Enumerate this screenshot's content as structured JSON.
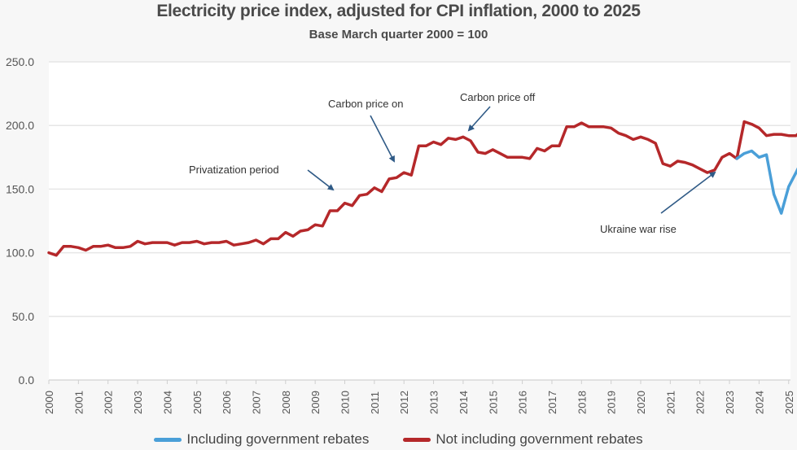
{
  "chart_data": {
    "type": "line",
    "title": "Electricity price index, adjusted for CPI inflation, 2000 to 2025",
    "subtitle": "Base March quarter 2000 = 100",
    "xlabel": "",
    "ylabel": "",
    "ylim": [
      0,
      250
    ],
    "yticks": [
      "0.0",
      "50.0",
      "100.0",
      "150.0",
      "200.0",
      "250.0"
    ],
    "ytick_values": [
      0,
      50,
      100,
      150,
      200,
      250
    ],
    "xticks": [
      "2000",
      "2001",
      "2002",
      "2003",
      "2004",
      "2005",
      "2006",
      "2007",
      "2008",
      "2009",
      "2010",
      "2011",
      "2012",
      "2013",
      "2014",
      "2015",
      "2016",
      "2017",
      "2018",
      "2019",
      "2020",
      "2021",
      "2022",
      "2023",
      "2024",
      "2025"
    ],
    "x_start": 2000.0,
    "x_step": 0.25,
    "grid": true,
    "legend_position": "bottom",
    "series": [
      {
        "name": "Including government rebates",
        "color": "#4a9fd8",
        "start_index": 93,
        "values": [
          174,
          178,
          180,
          175,
          177,
          146,
          131,
          152,
          163,
          175
        ]
      },
      {
        "name": "Not including government rebates",
        "color": "#b5282a",
        "start_index": 0,
        "values": [
          100,
          98,
          105,
          105,
          104,
          102,
          105,
          105,
          106,
          104,
          104,
          105,
          109,
          107,
          108,
          108,
          108,
          106,
          108,
          108,
          109,
          107,
          108,
          108,
          109,
          106,
          107,
          108,
          110,
          107,
          111,
          111,
          116,
          113,
          117,
          118,
          122,
          121,
          133,
          133,
          139,
          137,
          145,
          146,
          151,
          148,
          158,
          159,
          163,
          161,
          184,
          184,
          187,
          185,
          190,
          189,
          191,
          188,
          179,
          178,
          181,
          178,
          175,
          175,
          175,
          174,
          182,
          180,
          184,
          184,
          199,
          199,
          202,
          199,
          199,
          199,
          198,
          194,
          192,
          189,
          191,
          189,
          186,
          170,
          168,
          172,
          171,
          169,
          166,
          163,
          165,
          175,
          178,
          174,
          203,
          201,
          198,
          192,
          193,
          193,
          192,
          192,
          197
        ]
      }
    ],
    "annotations": [
      {
        "text": "Privatization period",
        "points_to_year": 2010.0
      },
      {
        "text": "Carbon price on",
        "points_to_year": 2012.25
      },
      {
        "text": "Carbon price off",
        "points_to_year": 2014.5
      },
      {
        "text": "Ukraine war rise",
        "points_to_year": 2023.0
      }
    ]
  },
  "colors": {
    "background": "#f7f7f7",
    "plot_background": "#ffffff",
    "gridline": "#e6e6e6",
    "arrow": "#2f5a86"
  }
}
